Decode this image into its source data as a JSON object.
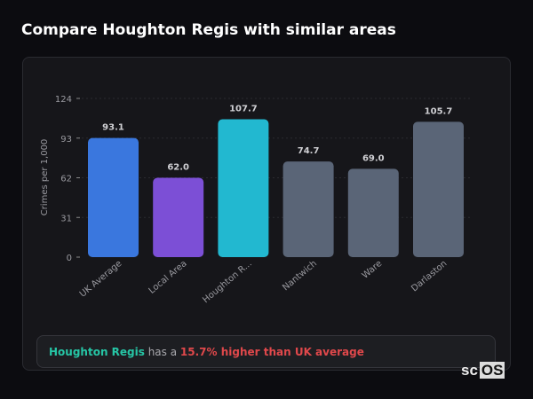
{
  "title": "Compare Houghton Regis with similar areas",
  "chart_data": {
    "type": "bar",
    "ylabel": "Crimes per 1,000",
    "categories": [
      "UK Average",
      "Local Area",
      "Houghton R...",
      "Nantwich",
      "Ware",
      "Darlaston"
    ],
    "values": [
      93.1,
      62.0,
      107.7,
      74.7,
      69.0,
      105.7
    ],
    "value_labels": [
      "93.1",
      "62.0",
      "107.7",
      "74.7",
      "69.0",
      "105.7"
    ],
    "colors": [
      "#3a77de",
      "#7c4fd6",
      "#22b8d0",
      "#5a6577",
      "#5a6577",
      "#5a6577"
    ],
    "yticks": [
      0,
      31,
      62,
      93,
      124
    ],
    "ylim": [
      0,
      124
    ],
    "grid": true
  },
  "summary": {
    "area": "Houghton Regis",
    "middle": " has a ",
    "comparison": "15.7% higher than UK average"
  },
  "logo": {
    "text_a": "sc",
    "text_b": "OS"
  }
}
